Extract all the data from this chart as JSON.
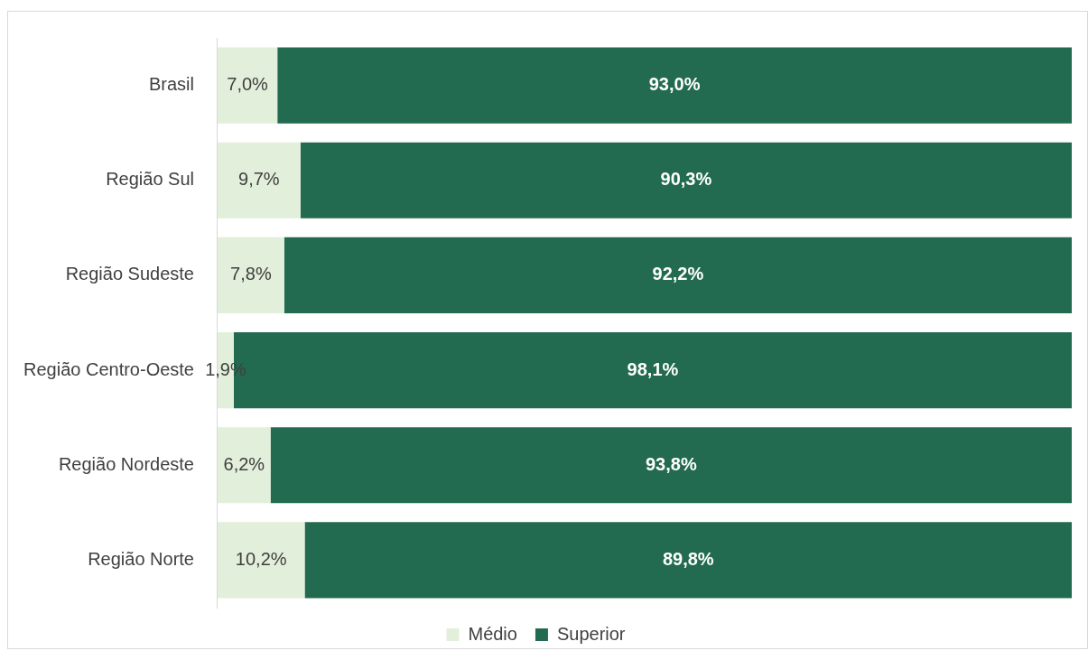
{
  "chart_data": {
    "type": "bar",
    "orientation": "horizontal",
    "stacked": true,
    "categories": [
      "Brasil",
      "Região Sul",
      "Região Sudeste",
      "Região Centro-Oeste",
      "Região Nordeste",
      "Região Norte"
    ],
    "series": [
      {
        "name": "Médio",
        "color": "#e2efda",
        "values": [
          7.0,
          9.7,
          7.8,
          1.9,
          6.2,
          10.2
        ],
        "value_labels": [
          "7,0%",
          "9,7%",
          "7,8%",
          "1,9%",
          "6,2%",
          "10,2%"
        ]
      },
      {
        "name": "Superior",
        "color": "#226b50",
        "values": [
          93.0,
          90.3,
          92.2,
          98.1,
          93.8,
          89.8
        ],
        "value_labels": [
          "93,0%",
          "90,3%",
          "92,2%",
          "98,1%",
          "93,8%",
          "89,8%"
        ]
      }
    ],
    "xlim": [
      0,
      100
    ],
    "tick_labels": "y",
    "grid": false,
    "legend": "bottom"
  }
}
